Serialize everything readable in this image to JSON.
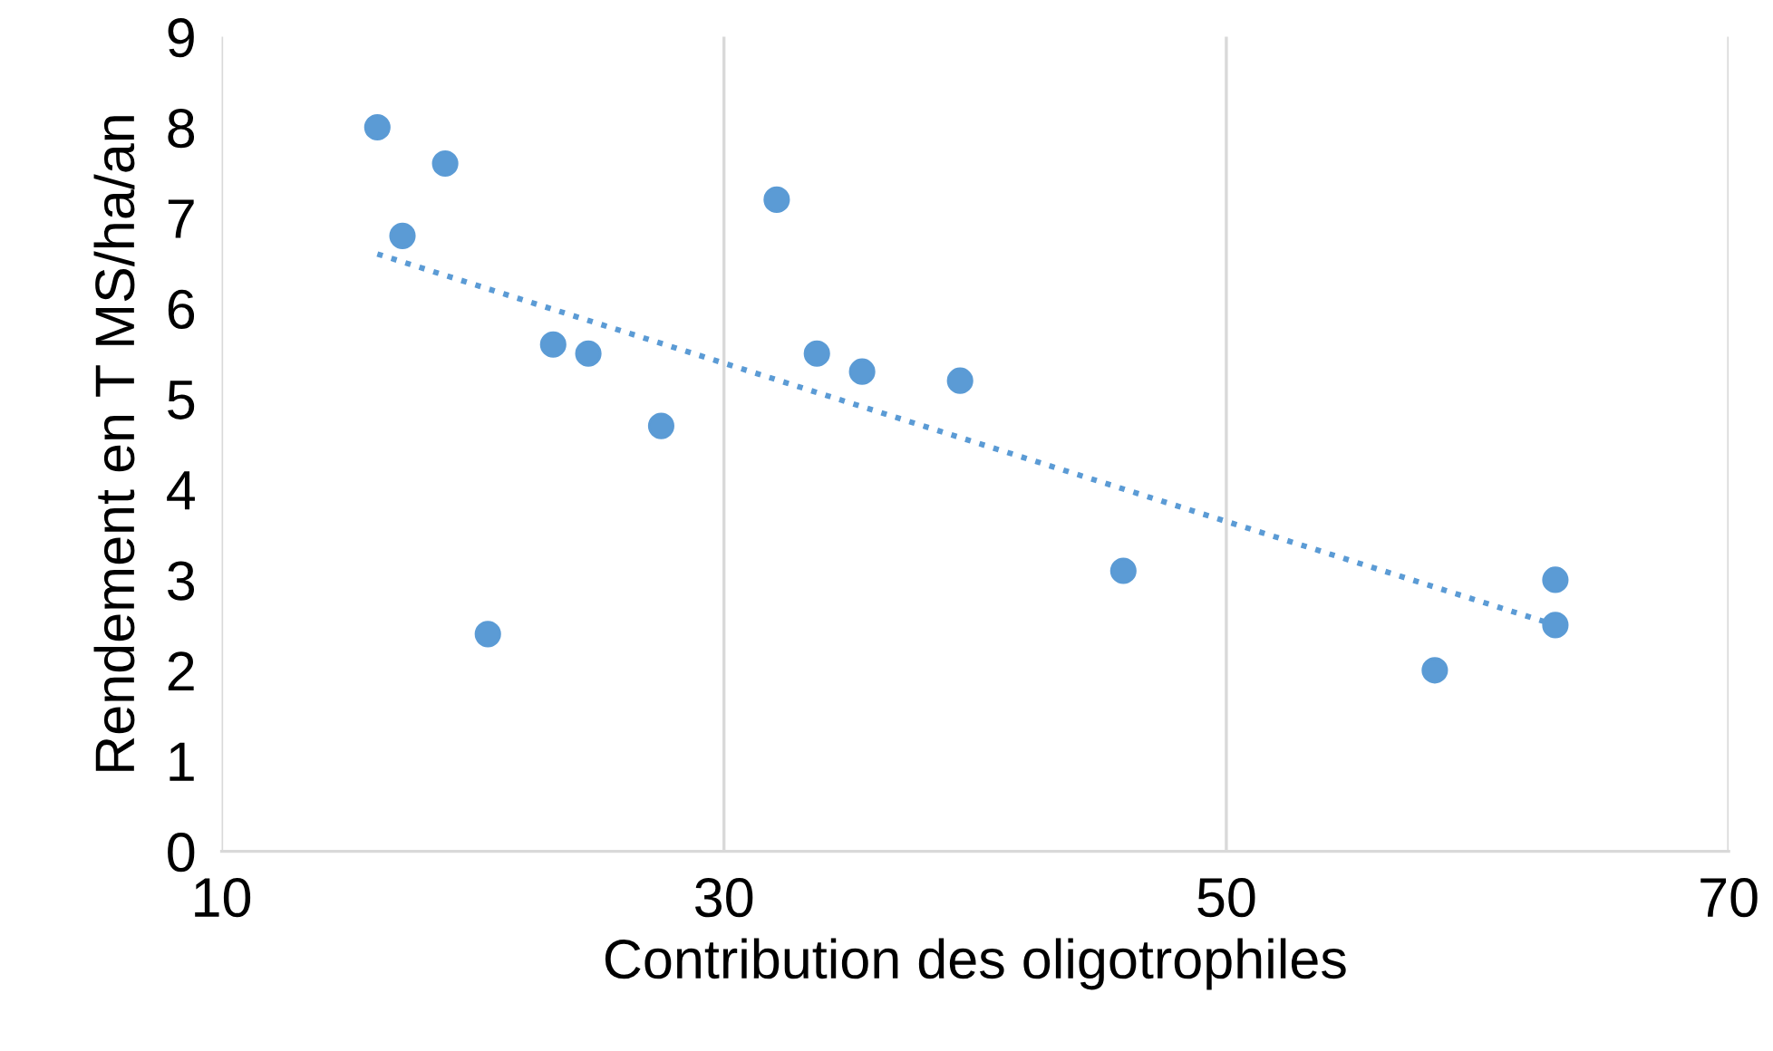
{
  "chart_data": {
    "type": "scatter",
    "xlabel": "Contribution des oligotrophiles",
    "ylabel": "Rendement en T MS/ha/an",
    "xlim": [
      10,
      70
    ],
    "xticks": [
      10,
      30,
      50,
      70
    ],
    "ylim": [
      0,
      9
    ],
    "yticks": [
      0,
      1,
      2,
      3,
      4,
      5,
      6,
      7,
      8,
      9
    ],
    "grid": "x",
    "marker": "circle",
    "legend": false,
    "series": [
      {
        "color": "#5b9bd5",
        "x": [
          16.2,
          18.9,
          17.2,
          23.2,
          24.6,
          20.6,
          27.5,
          32.1,
          33.7,
          35.5,
          39.4,
          45.9,
          58.3,
          63.1,
          63.1
        ],
        "values": [
          8.0,
          7.6,
          6.8,
          5.6,
          5.5,
          2.4,
          4.7,
          7.2,
          5.5,
          5.3,
          5.2,
          3.1,
          2.0,
          3.0,
          2.5
        ]
      },
      {
        "type": "line",
        "color": "#5b9bd5",
        "line_style": "dotted",
        "marker": "none",
        "x": [
          16.2,
          63.1
        ],
        "values": [
          6.6,
          2.5
        ]
      }
    ]
  }
}
